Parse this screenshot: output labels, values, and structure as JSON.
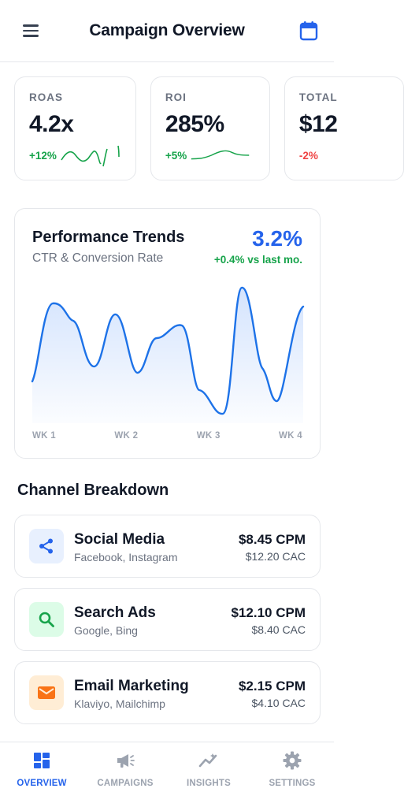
{
  "header": {
    "title": "Campaign Overview",
    "menu_icon": "hamburger-menu-icon",
    "calendar_icon": "calendar-icon"
  },
  "kpis": [
    {
      "label": "ROAS",
      "value": "4.2x",
      "delta": "+12%",
      "trend": "up"
    },
    {
      "label": "ROI",
      "value": "285%",
      "delta": "+5%",
      "trend": "up"
    },
    {
      "label": "TOTAL",
      "value": "$12",
      "delta": "-2%",
      "trend": "down"
    }
  ],
  "performance": {
    "title": "Performance Trends",
    "subtitle": "CTR & Conversion Rate",
    "value": "3.2%",
    "change": "+0.4% vs last mo.",
    "x_labels": [
      "WK 1",
      "WK 2",
      "WK 3",
      "WK 4"
    ]
  },
  "channels_title": "Channel Breakdown",
  "channels": [
    {
      "name": "Social Media",
      "sub": "Facebook, Instagram",
      "cpm": "$8.45 CPM",
      "cac": "$12.20 CAC",
      "icon": "share-icon"
    },
    {
      "name": "Search Ads",
      "sub": "Google, Bing",
      "cpm": "$12.10 CPM",
      "cac": "$8.40 CAC",
      "icon": "search-icon"
    },
    {
      "name": "Email Marketing",
      "sub": "Klaviyo, Mailchimp",
      "cpm": "$2.15 CPM",
      "cac": "$4.10 CAC",
      "icon": "mail-icon"
    }
  ],
  "nav": [
    {
      "label": "OVERVIEW",
      "icon": "dashboard-icon",
      "active": true
    },
    {
      "label": "CAMPAIGNS",
      "icon": "megaphone-icon",
      "active": false
    },
    {
      "label": "INSIGHTS",
      "icon": "insights-icon",
      "active": false
    },
    {
      "label": "SETTINGS",
      "icon": "gear-icon",
      "active": false
    }
  ],
  "colors": {
    "accent": "#2563eb",
    "positive": "#16a34a",
    "negative": "#ef4444",
    "social_bg": "#e8f0fe",
    "search_bg": "#dcfce7",
    "email_bg": "#ffedd5",
    "email_accent": "#f97316",
    "search_accent": "#16a34a"
  }
}
